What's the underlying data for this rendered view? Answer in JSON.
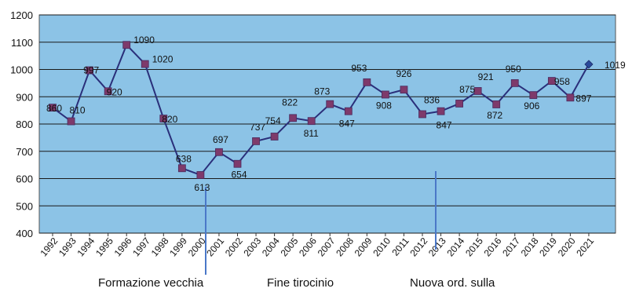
{
  "chart_data": {
    "type": "line",
    "x": [
      "1992",
      "1993",
      "1994",
      "1995",
      "1996",
      "1997",
      "1998",
      "1999",
      "2000",
      "2001",
      "2002",
      "2003",
      "2004",
      "2005",
      "2006",
      "2007",
      "2008",
      "2009",
      "2010",
      "2011",
      "2012",
      "2013",
      "2014",
      "2015",
      "2016",
      "2017",
      "2018",
      "2019",
      "2020",
      "2021"
    ],
    "values": [
      860,
      810,
      997,
      920,
      1090,
      1020,
      820,
      638,
      613,
      697,
      654,
      737,
      754,
      822,
      811,
      873,
      847,
      953,
      908,
      926,
      836,
      847,
      875,
      921,
      872,
      950,
      906,
      958,
      897,
      1019
    ],
    "data_labels": [
      "860",
      "810",
      "997",
      "920",
      "1090",
      "1020",
      "820",
      "638",
      "613",
      "697",
      "654",
      "737",
      "754",
      "822",
      "811",
      "873",
      "847",
      "953",
      "908",
      "926",
      "836",
      "847",
      "875",
      "921",
      "872",
      "950",
      "906",
      "958",
      "897",
      "1019"
    ],
    "ylim": [
      400,
      1200
    ],
    "yticks": [
      400,
      500,
      600,
      700,
      800,
      900,
      1000,
      1100,
      1200
    ],
    "ytick_labels": [
      "400",
      "500",
      "600",
      "700",
      "800",
      "900",
      "1000",
      "1100",
      "1200"
    ],
    "grid": true,
    "annotations": [
      "Formazione vecchia",
      "Fine tirocinio",
      "Nuova ord. sulla"
    ],
    "colors": {
      "plot_background": "#8cc3e6",
      "line": "#2a2f7a",
      "marker": "#7e3a6b",
      "last_marker": "#2a4a9a",
      "gridline": "#1a1a1a"
    }
  }
}
